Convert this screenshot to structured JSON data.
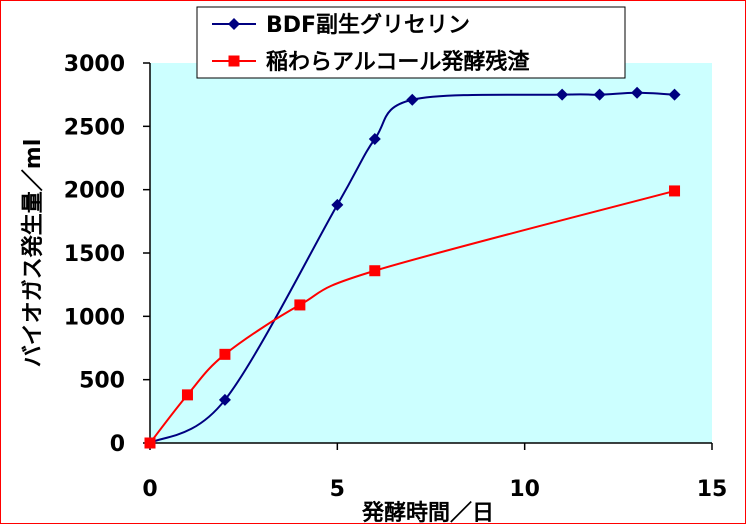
{
  "chart_data": {
    "type": "line",
    "xlabel": "発酵時間／日",
    "ylabel": "バイオガス発生量／ml",
    "xlim": [
      0,
      15
    ],
    "ylim": [
      0,
      3000
    ],
    "x_ticks": [
      "0",
      "5",
      "10",
      "15"
    ],
    "y_ticks": [
      "0",
      "500",
      "1000",
      "1500",
      "2000",
      "2500",
      "3000"
    ],
    "grid": false,
    "legend_position": "top",
    "plot_background": "#ccffff",
    "series": [
      {
        "name": "BDF副生グリセリン",
        "color": "#000080",
        "marker": "diamond",
        "points": [
          [
            0,
            0
          ],
          [
            2,
            340
          ],
          [
            5,
            1880
          ],
          [
            6,
            2400
          ],
          [
            7,
            2710
          ],
          [
            11,
            2750
          ],
          [
            12,
            2750
          ],
          [
            13,
            2765
          ],
          [
            14,
            2750
          ]
        ]
      },
      {
        "name": "稲わらアルコール発酵残渣",
        "color": "#ff0000",
        "marker": "square",
        "points": [
          [
            0,
            0
          ],
          [
            1,
            380
          ],
          [
            2,
            700
          ],
          [
            4,
            1090
          ],
          [
            6,
            1360
          ],
          [
            14,
            1990
          ]
        ]
      }
    ]
  }
}
